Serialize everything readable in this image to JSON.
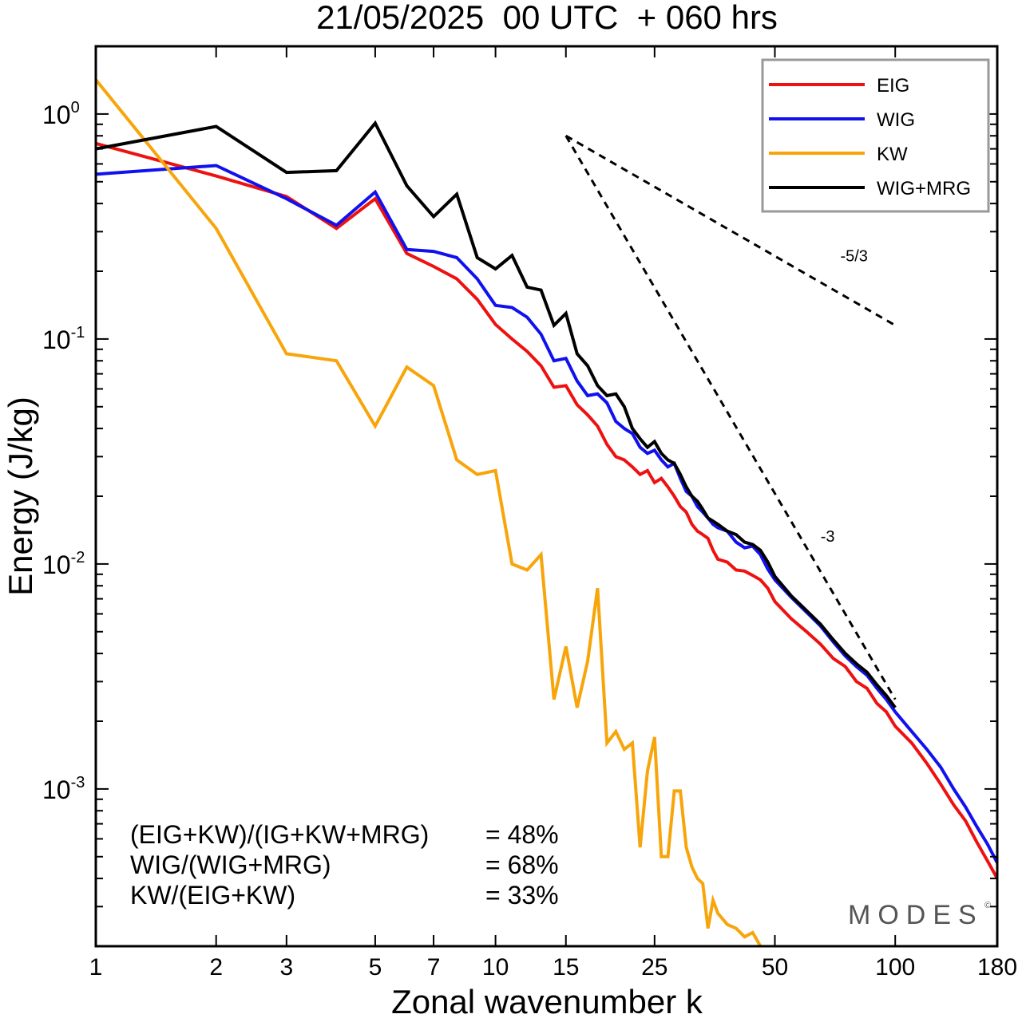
{
  "chart_data": {
    "type": "line",
    "title": "21/05/2025  00 UTC  + 060 hrs",
    "xlabel": "Zonal wavenumber k",
    "ylabel": "Energy (J/kg)",
    "x_scale": "log",
    "y_scale": "log",
    "xlim": [
      1,
      180
    ],
    "ylim": [
      0.0002,
      2.0
    ],
    "x_ticks": [
      {
        "value": 1,
        "label": "1"
      },
      {
        "value": 2,
        "label": "2"
      },
      {
        "value": 3,
        "label": "3"
      },
      {
        "value": 5,
        "label": "5"
      },
      {
        "value": 7,
        "label": "7"
      },
      {
        "value": 10,
        "label": "10"
      },
      {
        "value": 15,
        "label": "15"
      },
      {
        "value": 25,
        "label": "25"
      },
      {
        "value": 50,
        "label": "50"
      },
      {
        "value": 100,
        "label": "100"
      },
      {
        "value": 180,
        "label": "180"
      }
    ],
    "y_ticks": [
      {
        "value": 1,
        "base": "10",
        "exp": "0"
      },
      {
        "value": 0.1,
        "base": "10",
        "exp": "-1"
      },
      {
        "value": 0.01,
        "base": "10",
        "exp": "-2"
      },
      {
        "value": 0.001,
        "base": "10",
        "exp": "-3"
      }
    ],
    "grid": false,
    "legend_position": "top-right",
    "series": [
      {
        "name": "EIG",
        "color": "#ee1111",
        "width": 4,
        "points": [
          [
            1,
            0.74
          ],
          [
            2,
            0.53
          ],
          [
            3,
            0.43
          ],
          [
            4,
            0.31
          ],
          [
            5,
            0.42
          ],
          [
            6,
            0.24
          ],
          [
            7,
            0.21
          ],
          [
            8,
            0.185
          ],
          [
            9,
            0.15
          ],
          [
            10,
            0.116
          ],
          [
            11,
            0.1
          ],
          [
            12,
            0.088
          ],
          [
            13,
            0.076
          ],
          [
            14,
            0.061
          ],
          [
            15,
            0.062
          ],
          [
            16,
            0.051
          ],
          [
            17,
            0.046
          ],
          [
            18,
            0.041
          ],
          [
            19,
            0.034
          ],
          [
            20,
            0.03
          ],
          [
            21,
            0.029
          ],
          [
            22,
            0.027
          ],
          [
            23,
            0.025
          ],
          [
            24,
            0.026
          ],
          [
            25,
            0.023
          ],
          [
            26,
            0.024
          ],
          [
            27,
            0.022
          ],
          [
            28,
            0.02
          ],
          [
            29,
            0.018
          ],
          [
            30,
            0.017
          ],
          [
            31,
            0.015
          ],
          [
            32,
            0.014
          ],
          [
            33,
            0.0135
          ],
          [
            34,
            0.013
          ],
          [
            35,
            0.0115
          ],
          [
            36,
            0.0105
          ],
          [
            38,
            0.0102
          ],
          [
            40,
            0.0094
          ],
          [
            42,
            0.0093
          ],
          [
            44,
            0.0089
          ],
          [
            46,
            0.0085
          ],
          [
            48,
            0.0078
          ],
          [
            50,
            0.0068
          ],
          [
            55,
            0.0057
          ],
          [
            60,
            0.005
          ],
          [
            65,
            0.0044
          ],
          [
            70,
            0.0038
          ],
          [
            75,
            0.0035
          ],
          [
            80,
            0.003
          ],
          [
            85,
            0.0028
          ],
          [
            90,
            0.0024
          ],
          [
            95,
            0.0022
          ],
          [
            100,
            0.0019
          ],
          [
            110,
            0.0016
          ],
          [
            120,
            0.0013
          ],
          [
            130,
            0.00105
          ],
          [
            140,
            0.00085
          ],
          [
            150,
            0.00072
          ],
          [
            160,
            0.00058
          ],
          [
            170,
            0.00048
          ],
          [
            180,
            0.0004
          ]
        ]
      },
      {
        "name": "WIG",
        "color": "#1111ee",
        "width": 4,
        "points": [
          [
            1,
            0.54
          ],
          [
            2,
            0.59
          ],
          [
            3,
            0.42
          ],
          [
            4,
            0.32
          ],
          [
            5,
            0.45
          ],
          [
            6,
            0.25
          ],
          [
            7,
            0.245
          ],
          [
            8,
            0.23
          ],
          [
            9,
            0.185
          ],
          [
            10,
            0.141
          ],
          [
            11,
            0.138
          ],
          [
            12,
            0.125
          ],
          [
            13,
            0.105
          ],
          [
            14,
            0.08
          ],
          [
            15,
            0.082
          ],
          [
            16,
            0.065
          ],
          [
            17,
            0.056
          ],
          [
            18,
            0.057
          ],
          [
            19,
            0.052
          ],
          [
            20,
            0.043
          ],
          [
            21,
            0.04
          ],
          [
            22,
            0.038
          ],
          [
            23,
            0.033
          ],
          [
            24,
            0.031
          ],
          [
            25,
            0.032
          ],
          [
            26,
            0.029
          ],
          [
            27,
            0.027
          ],
          [
            28,
            0.028
          ],
          [
            29,
            0.024
          ],
          [
            30,
            0.021
          ],
          [
            31,
            0.02
          ],
          [
            32,
            0.018
          ],
          [
            33,
            0.017
          ],
          [
            34,
            0.016
          ],
          [
            35,
            0.015
          ],
          [
            36,
            0.0145
          ],
          [
            38,
            0.014
          ],
          [
            40,
            0.0125
          ],
          [
            42,
            0.0118
          ],
          [
            44,
            0.012
          ],
          [
            46,
            0.011
          ],
          [
            48,
            0.0095
          ],
          [
            50,
            0.0085
          ],
          [
            55,
            0.0071
          ],
          [
            60,
            0.0061
          ],
          [
            65,
            0.0053
          ],
          [
            70,
            0.0045
          ],
          [
            75,
            0.0039
          ],
          [
            80,
            0.0035
          ],
          [
            85,
            0.0032
          ],
          [
            90,
            0.0028
          ],
          [
            95,
            0.0025
          ],
          [
            100,
            0.0022
          ],
          [
            110,
            0.0018
          ],
          [
            120,
            0.0015
          ],
          [
            130,
            0.00125
          ],
          [
            140,
            0.001
          ],
          [
            150,
            0.00083
          ],
          [
            160,
            0.00068
          ],
          [
            170,
            0.00057
          ],
          [
            180,
            0.00047
          ]
        ]
      },
      {
        "name": "KW",
        "color": "#f7a50a",
        "width": 4,
        "points": [
          [
            1,
            1.42
          ],
          [
            2,
            0.31
          ],
          [
            3,
            0.086
          ],
          [
            4,
            0.08
          ],
          [
            5,
            0.041
          ],
          [
            6,
            0.075
          ],
          [
            7,
            0.062
          ],
          [
            8,
            0.029
          ],
          [
            9,
            0.025
          ],
          [
            10,
            0.026
          ],
          [
            11,
            0.01
          ],
          [
            12,
            0.0094
          ],
          [
            13,
            0.011
          ],
          [
            14,
            0.0025
          ],
          [
            15,
            0.0043
          ],
          [
            16,
            0.0023
          ],
          [
            17,
            0.0037
          ],
          [
            18,
            0.0078
          ],
          [
            19,
            0.0016
          ],
          [
            20,
            0.0018
          ],
          [
            21,
            0.0015
          ],
          [
            22,
            0.0016
          ],
          [
            23,
            0.00055
          ],
          [
            24,
            0.0012
          ],
          [
            25,
            0.0017
          ],
          [
            26,
            0.0005
          ],
          [
            27,
            0.0005
          ],
          [
            28,
            0.00098
          ],
          [
            29,
            0.00098
          ],
          [
            30,
            0.00055
          ],
          [
            31,
            0.00045
          ],
          [
            32,
            0.0004
          ],
          [
            33,
            0.00038
          ],
          [
            34,
            0.00024
          ],
          [
            35,
            0.00032
          ],
          [
            36,
            0.00028
          ],
          [
            38,
            0.00025
          ],
          [
            40,
            0.00024
          ],
          [
            42,
            0.00022
          ],
          [
            44,
            0.00023
          ],
          [
            46,
            0.0002
          ]
        ]
      },
      {
        "name": "WIG+MRG",
        "color": "#000000",
        "width": 4,
        "points": [
          [
            1,
            0.7
          ],
          [
            2,
            0.88
          ],
          [
            3,
            0.55
          ],
          [
            4,
            0.56
          ],
          [
            5,
            0.91
          ],
          [
            6,
            0.48
          ],
          [
            7,
            0.35
          ],
          [
            8,
            0.44
          ],
          [
            9,
            0.23
          ],
          [
            10,
            0.205
          ],
          [
            11,
            0.235
          ],
          [
            12,
            0.17
          ],
          [
            13,
            0.165
          ],
          [
            14,
            0.115
          ],
          [
            15,
            0.13
          ],
          [
            16,
            0.086
          ],
          [
            17,
            0.076
          ],
          [
            18,
            0.062
          ],
          [
            19,
            0.056
          ],
          [
            20,
            0.057
          ],
          [
            21,
            0.05
          ],
          [
            22,
            0.04
          ],
          [
            23,
            0.036
          ],
          [
            24,
            0.033
          ],
          [
            25,
            0.035
          ],
          [
            26,
            0.031
          ],
          [
            27,
            0.029
          ],
          [
            28,
            0.028
          ],
          [
            29,
            0.025
          ],
          [
            30,
            0.022
          ],
          [
            31,
            0.02
          ],
          [
            32,
            0.019
          ],
          [
            33,
            0.0175
          ],
          [
            34,
            0.016
          ],
          [
            35,
            0.0155
          ],
          [
            36,
            0.015
          ],
          [
            38,
            0.014
          ],
          [
            40,
            0.0135
          ],
          [
            42,
            0.0125
          ],
          [
            44,
            0.0122
          ],
          [
            46,
            0.0115
          ],
          [
            48,
            0.0102
          ],
          [
            50,
            0.0088
          ],
          [
            55,
            0.0072
          ],
          [
            60,
            0.0062
          ],
          [
            65,
            0.0054
          ],
          [
            70,
            0.0046
          ],
          [
            75,
            0.004
          ],
          [
            80,
            0.0036
          ],
          [
            85,
            0.0033
          ],
          [
            90,
            0.0029
          ],
          [
            95,
            0.0026
          ],
          [
            100,
            0.0023
          ]
        ]
      }
    ],
    "reference_slopes": [
      {
        "label": "-5/3",
        "start": [
          15,
          0.8
        ],
        "end": [
          100,
          0.115
        ]
      },
      {
        "label": "-3",
        "start": [
          15,
          0.8
        ],
        "end": [
          100,
          0.0025
        ]
      }
    ],
    "annotations": [
      {
        "label": "(EIG+KW)/(IG+KW+MRG)",
        "value": "= 48%"
      },
      {
        "label": "WIG/(WIG+MRG)",
        "value": "= 68%"
      },
      {
        "label": "KW/(EIG+KW)",
        "value": "= 33%"
      }
    ],
    "watermark": "MODES"
  }
}
